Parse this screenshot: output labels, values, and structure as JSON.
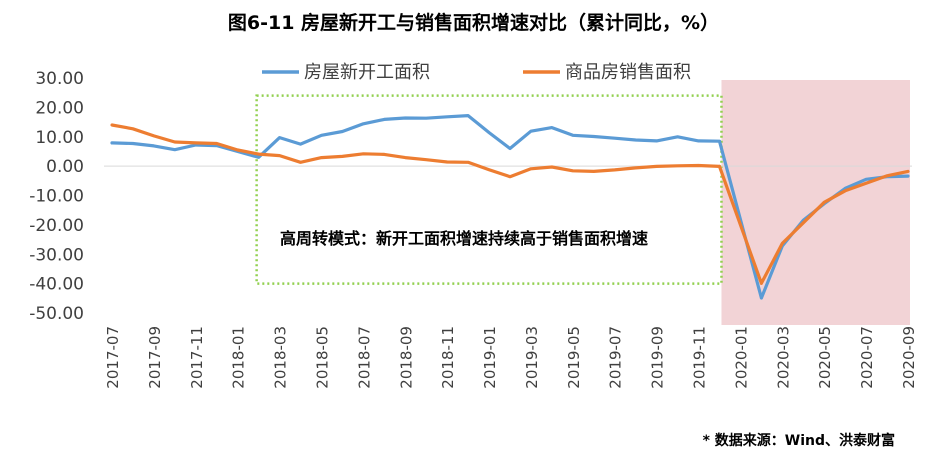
{
  "title": "图6-11 房屋新开工与销售面积增速对比（累计同比，%）",
  "source": "* 数据来源：Wind、洪泰财富",
  "colors": {
    "new_start": "#5B9BD5",
    "sales": "#ED7D31",
    "highlight": "#F2D3D6",
    "box": "#92D050",
    "axis": "#D9D9D9"
  },
  "chart_data": {
    "type": "line",
    "title": "图6-11 房屋新开工与销售面积增速对比（累计同比，%）",
    "ylim": [
      -50,
      30
    ],
    "yticks": [
      "30.00",
      "20.00",
      "10.00",
      "0.00",
      "-10.00",
      "-20.00",
      "-30.00",
      "-40.00",
      "-50.00"
    ],
    "x": [
      "2017-07",
      "2017-08",
      "2017-09",
      "2017-10",
      "2017-11",
      "2017-12",
      "2018-01",
      "2018-02",
      "2018-03",
      "2018-04",
      "2018-05",
      "2018-06",
      "2018-07",
      "2018-08",
      "2018-09",
      "2018-10",
      "2018-11",
      "2018-12",
      "2019-01",
      "2019-02",
      "2019-03",
      "2019-04",
      "2019-05",
      "2019-06",
      "2019-07",
      "2019-08",
      "2019-09",
      "2019-10",
      "2019-11",
      "2019-12",
      "2020-01",
      "2020-02",
      "2020-03",
      "2020-04",
      "2020-05",
      "2020-06",
      "2020-07",
      "2020-08",
      "2020-09"
    ],
    "xtick_labels": [
      "2017-07",
      "2017-09",
      "2017-11",
      "2018-01",
      "2018-03",
      "2018-05",
      "2018-07",
      "2018-09",
      "2018-11",
      "2019-01",
      "2019-03",
      "2019-05",
      "2019-07",
      "2019-09",
      "2019-11",
      "2020-01",
      "2020-03",
      "2020-05",
      "2020-07",
      "2020-09"
    ],
    "series": [
      {
        "name": "房屋新开工面积",
        "values": [
          7.9,
          7.7,
          6.9,
          5.6,
          7.2,
          7.0,
          5.0,
          3.0,
          9.7,
          7.5,
          10.5,
          11.8,
          14.4,
          15.9,
          16.4,
          16.3,
          16.8,
          17.2,
          11.4,
          6.0,
          11.9,
          13.1,
          10.5,
          10.1,
          9.5,
          8.9,
          8.6,
          10.0,
          8.6,
          8.5,
          null,
          -44.9,
          -27.2,
          -18.4,
          -12.8,
          -7.6,
          -4.5,
          -3.6,
          -3.4
        ]
      },
      {
        "name": "商品房销售面积",
        "values": [
          14.0,
          12.7,
          10.3,
          8.2,
          7.9,
          7.7,
          5.5,
          4.1,
          3.6,
          1.3,
          2.9,
          3.3,
          4.2,
          4.0,
          2.9,
          2.2,
          1.4,
          1.3,
          -1.2,
          -3.6,
          -0.9,
          -0.3,
          -1.6,
          -1.8,
          -1.3,
          -0.6,
          -0.1,
          0.1,
          0.2,
          -0.1,
          null,
          -39.9,
          -26.3,
          -19.3,
          -12.3,
          -8.4,
          -5.8,
          -3.3,
          -1.8
        ]
      }
    ],
    "annotations": [
      {
        "text": "高周转模式：新开工面积增速持续高于销售面积增速",
        "x_start": "2018-02",
        "x_end": "2019-12",
        "y_range": [
          -40,
          24
        ]
      }
    ],
    "highlight_range": {
      "x_start": "2019-12",
      "x_end": "2020-09"
    },
    "legend_position": "top",
    "grid": false
  }
}
